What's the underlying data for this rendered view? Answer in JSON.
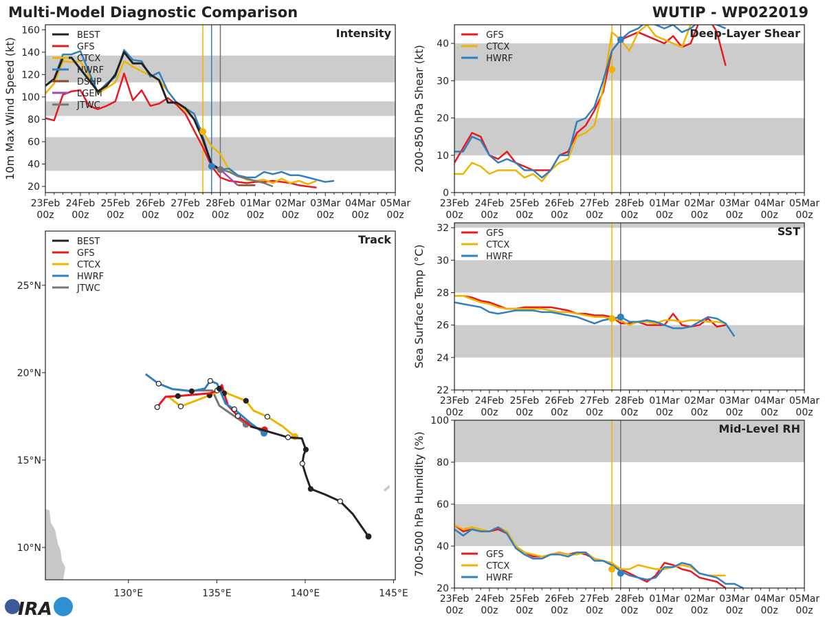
{
  "header": {
    "title": "Multi-Model Diagnostic Comparison",
    "storm": "WUTIP - WP022019"
  },
  "colors": {
    "BEST": "#222222",
    "GFS": "#e8191e",
    "CTCX": "#f0b400",
    "HWRF": "#2f7fc1",
    "DSHP": "#8b4a2a",
    "LGEM": "#a04ab0",
    "JTWC": "#777777",
    "band": "#cccccc"
  },
  "time_axis": {
    "days": [
      "23Feb",
      "24Feb",
      "25Feb",
      "26Feb",
      "27Feb",
      "28Feb",
      "01Mar",
      "02Mar",
      "03Mar",
      "04Mar",
      "05Mar"
    ],
    "hour_label": "00z"
  },
  "chart_data": [
    {
      "id": "intensity",
      "type": "line",
      "title": "Intensity",
      "ylabel": "10m Max Wind Speed (kt)",
      "ylim": [
        14.5,
        164.5
      ],
      "yticks": [
        20,
        40,
        60,
        80,
        100,
        120,
        140,
        160
      ],
      "bands": [
        [
          34,
          64
        ],
        [
          83,
          96
        ],
        [
          113,
          137
        ]
      ],
      "vlines": [
        {
          "time": "27Feb 12z",
          "color": "CTCX"
        },
        {
          "time": "27Feb 18z",
          "color": "HWRF"
        },
        {
          "time": "28Feb 00z",
          "color": "#7a6f78"
        }
      ],
      "legend": [
        "BEST",
        "GFS",
        "CTCX",
        "HWRF",
        "DSHP",
        "LGEM",
        "JTWC"
      ],
      "series": [
        {
          "name": "GFS",
          "start": "23Feb 00z",
          "step_hours": 6,
          "values": [
            81,
            79,
            102,
            105,
            106,
            92,
            89,
            92,
            96,
            121,
            97,
            106,
            92,
            94,
            99,
            93,
            85,
            70,
            55,
            38,
            28,
            25,
            24,
            23,
            24,
            24,
            25,
            24,
            23,
            21,
            20,
            19
          ]
        },
        {
          "name": "CTCX",
          "start": "23Feb 00z",
          "step_hours": 6,
          "values": [
            103,
            112,
            132,
            131,
            132,
            118,
            103,
            108,
            113,
            132,
            127,
            123,
            119,
            115,
            105,
            95,
            88,
            80,
            69,
            56,
            49,
            35,
            30,
            26,
            25,
            26,
            23,
            27,
            23,
            25,
            22,
            25
          ]
        },
        {
          "name": "HWRF",
          "start": "23Feb 00z",
          "step_hours": 6,
          "values": [
            110,
            116,
            138,
            138,
            141,
            122,
            104,
            112,
            118,
            142,
            133,
            132,
            118,
            122,
            105,
            95,
            90,
            85,
            65,
            38,
            35,
            36,
            30,
            28,
            28,
            33,
            31,
            33,
            30,
            30,
            28,
            26,
            24,
            25
          ]
        },
        {
          "name": "DSHP",
          "start": "28Feb 12z",
          "step_hours": 6,
          "values": [
            21,
            21,
            21
          ]
        },
        {
          "name": "LGEM",
          "start": "28Feb 00z",
          "step_hours": 6,
          "values": [
            35,
            28,
            21
          ]
        },
        {
          "name": "JTWC",
          "start": "28Feb 00z",
          "step_hours": 6,
          "values": [
            35,
            33,
            29,
            27,
            25,
            23,
            20
          ]
        },
        {
          "name": "BEST",
          "start": "23Feb 00z",
          "step_hours": 6,
          "values": [
            110,
            116,
            135,
            135,
            125,
            115,
            105,
            110,
            120,
            140,
            130,
            130,
            120,
            115,
            95,
            95,
            90,
            80,
            62,
            40,
            35
          ]
        }
      ],
      "markers": [
        {
          "name": "CTCX",
          "time": "27Feb 12z",
          "value": 69
        },
        {
          "name": "HWRF",
          "time": "27Feb 18z",
          "value": 38
        },
        {
          "name": "JTWC",
          "time": "28Feb 00z",
          "value": 35
        }
      ]
    },
    {
      "id": "shear",
      "type": "line",
      "title": "Deep-Layer Shear",
      "ylabel": "200-850 hPa Shear (kt)",
      "ylim": [
        0,
        45
      ],
      "yticks": [
        0,
        10,
        20,
        30,
        40
      ],
      "bands": [
        [
          10,
          20
        ],
        [
          30,
          40
        ]
      ],
      "vlines": [
        {
          "time": "27Feb 12z",
          "color": "CTCX"
        },
        {
          "time": "27Feb 18z",
          "color": "#7a6f78"
        }
      ],
      "legend": [
        "GFS",
        "CTCX",
        "HWRF"
      ],
      "series": [
        {
          "name": "GFS",
          "start": "23Feb 00z",
          "step_hours": 6,
          "values": [
            8,
            12,
            16,
            15,
            10,
            9,
            11,
            8,
            7,
            6,
            6,
            6,
            10,
            11,
            16,
            18,
            22,
            27,
            38,
            41,
            42,
            43,
            42,
            41,
            40,
            42,
            39,
            40,
            46,
            47,
            43,
            34
          ]
        },
        {
          "name": "CTCX",
          "start": "23Feb 00z",
          "step_hours": 6,
          "values": [
            5,
            5,
            8,
            7,
            5,
            6,
            6,
            6,
            4,
            5,
            3,
            6,
            8,
            9,
            15,
            16,
            18,
            28,
            43,
            41,
            38,
            43,
            45,
            42,
            41,
            40,
            39,
            45,
            46
          ]
        },
        {
          "name": "HWRF",
          "start": "23Feb 00z",
          "step_hours": 6,
          "values": [
            11,
            11,
            15,
            14,
            10,
            8,
            9,
            8,
            6,
            6,
            4,
            6,
            10,
            10,
            19,
            20,
            23,
            30,
            38,
            41,
            43,
            44,
            46,
            45,
            44,
            45,
            43,
            44,
            46,
            46,
            45,
            44
          ]
        }
      ],
      "markers": [
        {
          "name": "CTCX",
          "time": "27Feb 12z",
          "value": 33
        },
        {
          "name": "HWRF",
          "time": "27Feb 18z",
          "value": 41
        }
      ]
    },
    {
      "id": "sst",
      "type": "line",
      "title": "SST",
      "ylabel": "Sea Surface Temp (°C)",
      "ylim": [
        22,
        32.3
      ],
      "yticks": [
        22,
        24,
        26,
        28,
        30,
        32
      ],
      "bands": [
        [
          24,
          26
        ],
        [
          28,
          30
        ],
        [
          32,
          32.3
        ]
      ],
      "vlines": [
        {
          "time": "27Feb 12z",
          "color": "CTCX"
        },
        {
          "time": "27Feb 18z",
          "color": "#7a6f78"
        }
      ],
      "legend": [
        "GFS",
        "CTCX",
        "HWRF"
      ],
      "series": [
        {
          "name": "GFS",
          "start": "23Feb 00z",
          "step_hours": 6,
          "values": [
            27.8,
            27.8,
            27.7,
            27.5,
            27.4,
            27.2,
            27.0,
            27.0,
            27.1,
            27.1,
            27.1,
            27.1,
            27.0,
            26.9,
            26.7,
            26.7,
            26.6,
            26.6,
            26.5,
            26.1,
            26.1,
            26.2,
            26.0,
            26.0,
            26.0,
            26.7,
            26.0,
            25.9,
            26.0,
            26.4,
            25.9,
            26.0
          ]
        },
        {
          "name": "CTCX",
          "start": "23Feb 00z",
          "step_hours": 6,
          "values": [
            27.8,
            27.8,
            27.6,
            27.4,
            27.3,
            27.1,
            27.0,
            27.0,
            27.0,
            27.0,
            27.0,
            26.9,
            26.8,
            26.8,
            26.7,
            26.6,
            26.5,
            26.5,
            26.4,
            26.3,
            26.0,
            26.2,
            26.2,
            26.1,
            26.3,
            26.3,
            26.2,
            26.3,
            26.3,
            26.2,
            26.2,
            26.1
          ]
        },
        {
          "name": "HWRF",
          "start": "23Feb 00z",
          "step_hours": 6,
          "values": [
            27.4,
            27.3,
            27.2,
            27.1,
            26.8,
            26.7,
            26.8,
            26.9,
            26.9,
            26.9,
            26.8,
            26.8,
            26.7,
            26.6,
            26.5,
            26.3,
            26.1,
            26.3,
            26.4,
            26.5,
            26.2,
            26.2,
            26.3,
            26.2,
            26.0,
            25.8,
            25.8,
            25.9,
            26.2,
            26.5,
            26.4,
            26.1,
            25.3
          ]
        }
      ],
      "markers": [
        {
          "name": "CTCX",
          "time": "27Feb 12z",
          "value": 26.4
        },
        {
          "name": "HWRF",
          "time": "27Feb 18z",
          "value": 26.5
        }
      ]
    },
    {
      "id": "rh",
      "type": "line",
      "title": "Mid-Level RH",
      "ylabel": "700-500 hPa Humidity (%)",
      "ylim": [
        20,
        100
      ],
      "yticks": [
        20,
        40,
        60,
        80,
        100
      ],
      "bands": [
        [
          40,
          60
        ],
        [
          80,
          100
        ]
      ],
      "vlines": [
        {
          "time": "27Feb 12z",
          "color": "CTCX"
        },
        {
          "time": "27Feb 18z",
          "color": "#7a6f78"
        }
      ],
      "legend": [
        "GFS",
        "CTCX",
        "HWRF"
      ],
      "legend_position": "bottom-left",
      "series": [
        {
          "name": "GFS",
          "start": "23Feb 00z",
          "step_hours": 6,
          "values": [
            50,
            47,
            48,
            47,
            47,
            48,
            46,
            40,
            37,
            35,
            35,
            36,
            37,
            36,
            37,
            36,
            34,
            33,
            31,
            29,
            27,
            25,
            23,
            26,
            32,
            31,
            29,
            28,
            25,
            24,
            23,
            20
          ]
        },
        {
          "name": "CTCX",
          "start": "23Feb 00z",
          "step_hours": 6,
          "values": [
            50,
            48,
            49,
            48,
            47,
            49,
            47,
            40,
            37,
            36,
            35,
            36,
            37,
            36,
            36,
            37,
            34,
            33,
            32,
            29,
            29,
            31,
            30,
            29,
            29,
            30,
            31,
            30,
            27,
            26,
            26,
            26
          ]
        },
        {
          "name": "HWRF",
          "start": "23Feb 00z",
          "step_hours": 6,
          "values": [
            48,
            45,
            48,
            47,
            47,
            49,
            46,
            39,
            36,
            34,
            34,
            36,
            36,
            35,
            37,
            37,
            33,
            33,
            31,
            28,
            26,
            25,
            24,
            25,
            30,
            30,
            32,
            31,
            27,
            26,
            25,
            22,
            22,
            20
          ]
        }
      ],
      "markers": [
        {
          "name": "CTCX",
          "time": "27Feb 12z",
          "value": 29
        },
        {
          "name": "HWRF",
          "time": "27Feb 18z",
          "value": 27
        }
      ]
    },
    {
      "id": "track",
      "type": "map",
      "title": "Track",
      "xlim": [
        125.3,
        145.1
      ],
      "ylim": [
        8.15,
        28.1
      ],
      "xticks": [
        {
          "v": 130,
          "label": "130°E"
        },
        {
          "v": 135,
          "label": "135°E"
        },
        {
          "v": 140,
          "label": "140°E"
        },
        {
          "v": 145,
          "label": "145°E"
        }
      ],
      "yticks": [
        {
          "v": 10,
          "label": "10°N"
        },
        {
          "v": 15,
          "label": "15°N"
        },
        {
          "v": 20,
          "label": "20°N"
        },
        {
          "v": 25,
          "label": "25°N"
        }
      ],
      "legend": [
        "BEST",
        "GFS",
        "CTCX",
        "HWRF",
        "JTWC"
      ],
      "tracks": [
        {
          "name": "JTWC",
          "points": [
            [
              136.65,
              17.05
            ],
            [
              135.14,
              18.11
            ],
            [
              134.75,
              18.98
            ],
            [
              134.28,
              18.98
            ],
            [
              133.77,
              18.98
            ]
          ]
        },
        {
          "name": "CTCX",
          "points": [
            [
              139.42,
              16.34
            ],
            [
              138.72,
              16.93
            ],
            [
              137.86,
              17.48
            ],
            [
              137.08,
              17.83
            ],
            [
              136.65,
              18.39
            ],
            [
              135.68,
              18.78
            ],
            [
              135.21,
              19.09
            ],
            [
              135.06,
              18.9
            ],
            [
              134.59,
              18.7
            ],
            [
              133.97,
              18.46
            ],
            [
              132.96,
              18.07
            ],
            [
              132.22,
              18.66
            ]
          ]
        },
        {
          "name": "GFS",
          "points": [
            [
              137.7,
              16.73
            ],
            [
              136.96,
              16.93
            ],
            [
              136.19,
              17.52
            ],
            [
              135.64,
              18.11
            ],
            [
              135.41,
              18.82
            ],
            [
              135.29,
              19.29
            ],
            [
              135.02,
              18.98
            ],
            [
              134.63,
              18.82
            ],
            [
              132.8,
              18.66
            ],
            [
              132.1,
              18.62
            ],
            [
              131.63,
              18.03
            ]
          ]
        },
        {
          "name": "HWRF",
          "points": [
            [
              137.67,
              16.54
            ],
            [
              136.89,
              17.13
            ],
            [
              135.99,
              17.91
            ],
            [
              135.49,
              18.23
            ],
            [
              135.14,
              19.09
            ],
            [
              135.02,
              19.37
            ],
            [
              134.63,
              19.53
            ],
            [
              134.32,
              19.09
            ],
            [
              133.58,
              18.94
            ],
            [
              132.49,
              19.06
            ],
            [
              131.71,
              19.37
            ],
            [
              130.97,
              19.92
            ]
          ]
        },
        {
          "name": "BEST",
          "points": [
            [
              143.58,
              10.63
            ],
            [
              142.68,
              11.93
            ],
            [
              141.98,
              12.64
            ],
            [
              141.13,
              13.03
            ],
            [
              140.31,
              13.35
            ],
            [
              140.04,
              14.13
            ],
            [
              139.84,
              14.8
            ],
            [
              139.92,
              15.3
            ],
            [
              140.04,
              15.6
            ],
            [
              139.81,
              16.24
            ],
            [
              139.03,
              16.3
            ],
            [
              136.89,
              16.93
            ]
          ]
        }
      ]
    }
  ],
  "logo": {
    "text": "CIRA"
  }
}
